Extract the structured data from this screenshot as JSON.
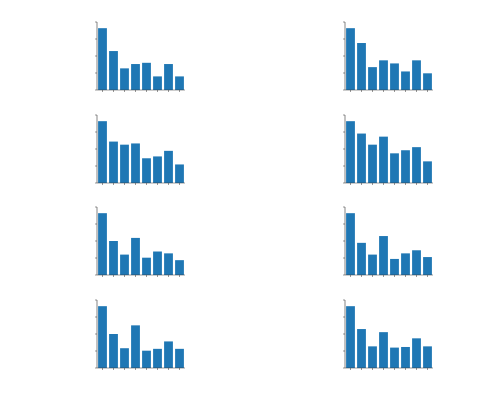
{
  "colors": {
    "bar": "#1f77b4",
    "axis": "#333333",
    "text": "#222222",
    "background": "#ffffff"
  },
  "chart_data": [
    {
      "type": "bar",
      "categories": [
        "",
        "",
        "",
        "",
        "",
        "",
        "",
        ""
      ],
      "values": [
        100,
        63,
        35,
        42,
        44,
        22,
        42,
        22
      ],
      "ylim": [
        0,
        110
      ]
    },
    {
      "type": "bar",
      "categories": [
        "",
        "",
        "",
        "",
        "",
        "",
        "",
        ""
      ],
      "values": [
        100,
        76,
        37,
        48,
        43,
        30,
        48,
        27
      ],
      "ylim": [
        0,
        110
      ]
    },
    {
      "type": "bar",
      "categories": [
        "",
        "",
        "",
        "",
        "",
        "",
        "",
        ""
      ],
      "values": [
        100,
        67,
        62,
        64,
        40,
        43,
        52,
        30
      ],
      "ylim": [
        0,
        110
      ]
    },
    {
      "type": "bar",
      "categories": [
        "",
        "",
        "",
        "",
        "",
        "",
        "",
        ""
      ],
      "values": [
        100,
        80,
        62,
        75,
        48,
        53,
        58,
        35
      ],
      "ylim": [
        0,
        110
      ]
    },
    {
      "type": "bar",
      "categories": [
        "",
        "",
        "",
        "",
        "",
        "",
        "",
        ""
      ],
      "values": [
        100,
        55,
        33,
        60,
        28,
        38,
        35,
        24
      ],
      "ylim": [
        0,
        110
      ]
    },
    {
      "type": "bar",
      "categories": [
        "",
        "",
        "",
        "",
        "",
        "",
        "",
        ""
      ],
      "values": [
        100,
        52,
        33,
        63,
        26,
        35,
        40,
        29
      ],
      "ylim": [
        0,
        110
      ]
    },
    {
      "type": "bar",
      "categories": [
        "",
        "",
        "",
        "",
        "",
        "",
        "",
        ""
      ],
      "values": [
        100,
        55,
        32,
        69,
        28,
        31,
        43,
        31
      ],
      "ylim": [
        0,
        110
      ]
    },
    {
      "type": "bar",
      "categories": [
        "",
        "",
        "",
        "",
        "",
        "",
        "",
        ""
      ],
      "values": [
        100,
        63,
        35,
        58,
        33,
        34,
        48,
        35
      ],
      "ylim": [
        0,
        110
      ]
    }
  ]
}
